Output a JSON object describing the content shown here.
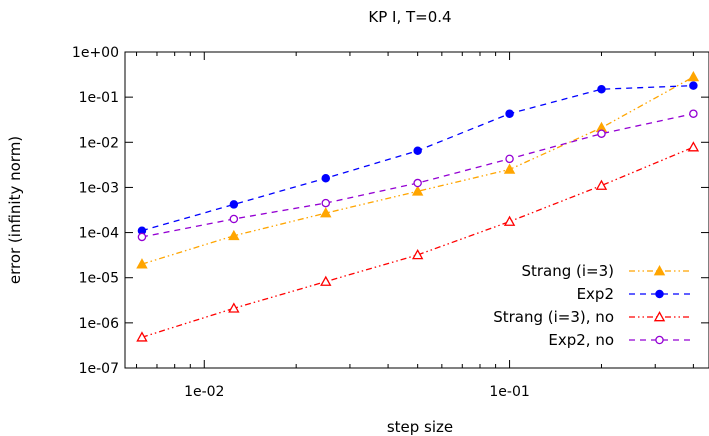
{
  "chart_data": {
    "type": "line",
    "title": "KP I, T=0.4",
    "xlabel": "step size",
    "ylabel": "error (infinity norm)",
    "x_scale": "log",
    "y_scale": "log",
    "xlim": [
      0.0055,
      0.45
    ],
    "ylim": [
      1e-07,
      1
    ],
    "x_ticks": [
      {
        "value": 0.01,
        "label": "1e-02"
      },
      {
        "value": 0.1,
        "label": "1e-01"
      }
    ],
    "y_ticks": [
      {
        "value": 1,
        "label": "1e+00"
      },
      {
        "value": 0.1,
        "label": "1e-01"
      },
      {
        "value": 0.01,
        "label": "1e-02"
      },
      {
        "value": 0.001,
        "label": "1e-03"
      },
      {
        "value": 0.0001,
        "label": "1e-04"
      },
      {
        "value": 1e-05,
        "label": "1e-05"
      },
      {
        "value": 1e-06,
        "label": "1e-06"
      },
      {
        "value": 1e-07,
        "label": "1e-07"
      }
    ],
    "grid": false,
    "legend_position": "bottom-right",
    "x": [
      0.00625,
      0.0125,
      0.025,
      0.05,
      0.1,
      0.2,
      0.4
    ],
    "series": [
      {
        "name": "Strang (i=3)",
        "color": "#FFA500",
        "marker": "filled-triangle",
        "dash": "dash-dot-dot",
        "values": [
          2e-05,
          8.5e-05,
          0.00027,
          0.00082,
          0.0025,
          0.021,
          0.28
        ]
      },
      {
        "name": "Exp2",
        "color": "#0000FF",
        "marker": "filled-circle",
        "dash": "dash",
        "values": [
          0.00011,
          0.00042,
          0.0016,
          0.0065,
          0.043,
          0.15,
          0.18
        ]
      },
      {
        "name": "Strang (i=3), no",
        "color": "#FF0000",
        "marker": "open-triangle",
        "dash": "dash-dot-dot",
        "values": [
          4.8e-07,
          2.1e-06,
          8.2e-06,
          3.2e-05,
          0.000175,
          0.0011,
          0.0078
        ]
      },
      {
        "name": "Exp2, no",
        "color": "#9400D3",
        "marker": "open-circle",
        "dash": "dash",
        "values": [
          8e-05,
          0.0002,
          0.00045,
          0.00125,
          0.0043,
          0.0155,
          0.043
        ]
      }
    ]
  }
}
